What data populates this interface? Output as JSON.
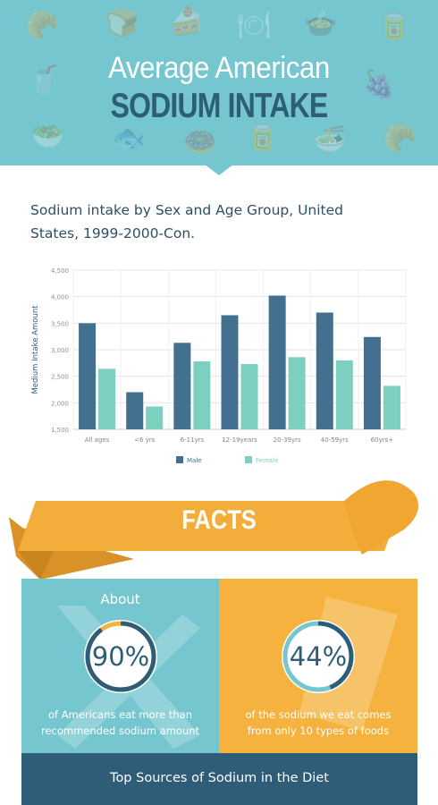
{
  "header": {
    "title_line1": "Average American",
    "title_line2": "SODIUM INTAKE"
  },
  "subtitle": "Sodium intake by Sex and Age Group, United States, 1999-2000-Con.",
  "chart_data": {
    "type": "bar",
    "title": "",
    "xlabel": "",
    "ylabel": "Medium Intake Amount",
    "ylim": [
      1500,
      4500
    ],
    "yticks": [
      "1,500",
      "2,000",
      "2,500",
      "3,000",
      "3,500",
      "4,000",
      "4,500"
    ],
    "ytick_values": [
      1500,
      2000,
      2500,
      3000,
      3500,
      4000,
      4500
    ],
    "categories": [
      "All ages",
      "<6 yrs",
      "6-11yrs",
      "12-19years",
      "20-39yrs",
      "40-59yrs",
      "60yrs+"
    ],
    "series": [
      {
        "name": "Male",
        "color": "#44708f",
        "values": [
          3500,
          2200,
          3130,
          3650,
          4020,
          3700,
          3240
        ]
      },
      {
        "name": "Female",
        "color": "#7dcfc0",
        "values": [
          2640,
          1930,
          2780,
          2730,
          2860,
          2800,
          2320
        ]
      }
    ],
    "grid": true,
    "legend_position": "bottom"
  },
  "facts": {
    "banner_label": "FACTS",
    "ribbon_color": "#f3ad3b"
  },
  "stats": [
    {
      "prefix": "About",
      "value": "90%",
      "percent": 90,
      "caption_line1": "of Americans eat more than",
      "caption_line2": "recommended sodium amount"
    },
    {
      "prefix": "",
      "value": "44%",
      "percent": 44,
      "caption_line1": "of the sodium we eat comes",
      "caption_line2": "from only 10 types of foods"
    }
  ],
  "footer": {
    "title": "Top Sources of Sodium in the Diet"
  },
  "colors": {
    "teal": "#76c6cf",
    "navy": "#2e5d78",
    "orange": "#f5b23e"
  },
  "header_icons": [
    "bread-icon",
    "cake-icon",
    "plate-icon",
    "bowl-icon",
    "fish-icon",
    "croissant-icon",
    "drink-icon",
    "grapes-icon",
    "salad-icon",
    "can-icon"
  ]
}
